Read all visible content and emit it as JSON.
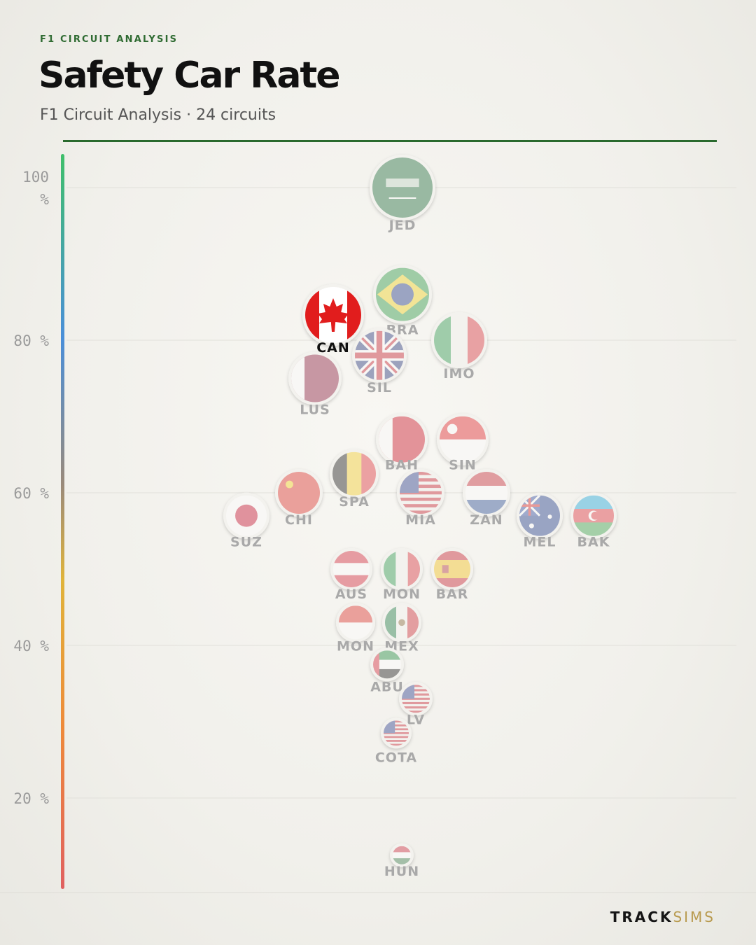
{
  "header": {
    "kicker": "F1 CIRCUIT ANALYSIS",
    "title": "Safety Car Rate",
    "subtitle": "F1 Circuit Analysis · 24 circuits"
  },
  "brand": {
    "part1": "TRACK",
    "part2": "SIMS"
  },
  "colors": {
    "accent": "#2a6a2e",
    "highlight_label": "#111111",
    "muted_label": "#a9a9a9"
  },
  "chart_data": {
    "type": "scatter",
    "title": "Safety Car Rate",
    "ylabel": "",
    "ylim": [
      8,
      104
    ],
    "y_ticks": [
      {
        "value": 100,
        "label": "100 %"
      },
      {
        "value": 80,
        "label": "80 %"
      },
      {
        "value": 60,
        "label": "60 %"
      },
      {
        "value": 40,
        "label": "40 %"
      },
      {
        "value": 20,
        "label": "20 %"
      }
    ],
    "grid": true,
    "highlight": "CAN",
    "points": [
      {
        "label": "JED",
        "y": 100,
        "flag": "saudi-arabia-flag-icon"
      },
      {
        "label": "BRA",
        "y": 86,
        "flag": "brazil-flag-icon"
      },
      {
        "label": "CAN",
        "y": 83.3,
        "flag": "canada-flag-icon"
      },
      {
        "label": "IMO",
        "y": 80,
        "flag": "italy-flag-icon"
      },
      {
        "label": "SIL",
        "y": 78,
        "flag": "uk-flag-icon"
      },
      {
        "label": "LUS",
        "y": 75,
        "flag": "qatar-flag-icon"
      },
      {
        "label": "BAH",
        "y": 67,
        "flag": "bahrain-flag-icon"
      },
      {
        "label": "SIN",
        "y": 67,
        "flag": "singapore-flag-icon"
      },
      {
        "label": "SPA",
        "y": 62.5,
        "flag": "belgium-flag-icon"
      },
      {
        "label": "CHI",
        "y": 60,
        "flag": "china-flag-icon"
      },
      {
        "label": "MIA",
        "y": 60,
        "flag": "usa-flag-icon"
      },
      {
        "label": "ZAN",
        "y": 60,
        "flag": "netherlands-flag-icon"
      },
      {
        "label": "SUZ",
        "y": 57,
        "flag": "japan-flag-icon"
      },
      {
        "label": "MEL",
        "y": 57,
        "flag": "australia-flag-icon"
      },
      {
        "label": "BAK",
        "y": 57,
        "flag": "azerbaijan-flag-icon"
      },
      {
        "label": "AUS",
        "y": 50,
        "flag": "austria-flag-icon"
      },
      {
        "label": "MON",
        "y": 50,
        "flag": "italy-flag-icon"
      },
      {
        "label": "BAR",
        "y": 50,
        "flag": "spain-flag-icon"
      },
      {
        "label": "MON",
        "y": 43,
        "flag": "monaco-flag-icon"
      },
      {
        "label": "MEX",
        "y": 43,
        "flag": "mexico-flag-icon"
      },
      {
        "label": "ABU",
        "y": 37.5,
        "flag": "uae-flag-icon"
      },
      {
        "label": "LV",
        "y": 33,
        "flag": "usa-flag-icon"
      },
      {
        "label": "COTA",
        "y": 28.5,
        "flag": "usa-flag-icon"
      },
      {
        "label": "HUN",
        "y": 12.5,
        "flag": "hungary-flag-icon"
      }
    ]
  }
}
